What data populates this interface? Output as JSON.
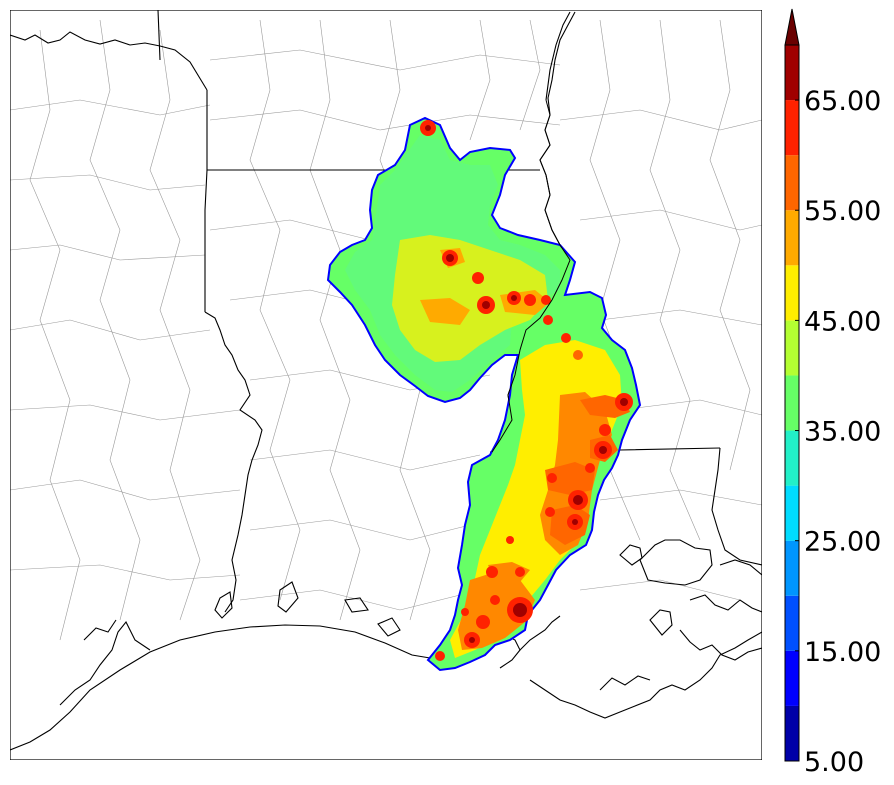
{
  "map": {
    "title": "",
    "field": "reflectivity composite swath",
    "colors": {
      "border_outline": "#0000ff",
      "state_line": "#000000",
      "county_line": "#9a9a9a"
    }
  },
  "colorbar": {
    "tick_labels": [
      "5.00",
      "15.00",
      "25.00",
      "35.00",
      "45.00",
      "55.00",
      "65.00"
    ],
    "levels": [
      5,
      10,
      15,
      20,
      25,
      30,
      35,
      40,
      45,
      50,
      55,
      60,
      65,
      70
    ],
    "colors": [
      "#0000a8",
      "#0000ff",
      "#0050ff",
      "#0096ff",
      "#00dcff",
      "#22f0c8",
      "#66ff66",
      "#b4ff32",
      "#ffee00",
      "#ffaa00",
      "#ff6600",
      "#ff2200",
      "#a00000"
    ],
    "extend": "max"
  }
}
